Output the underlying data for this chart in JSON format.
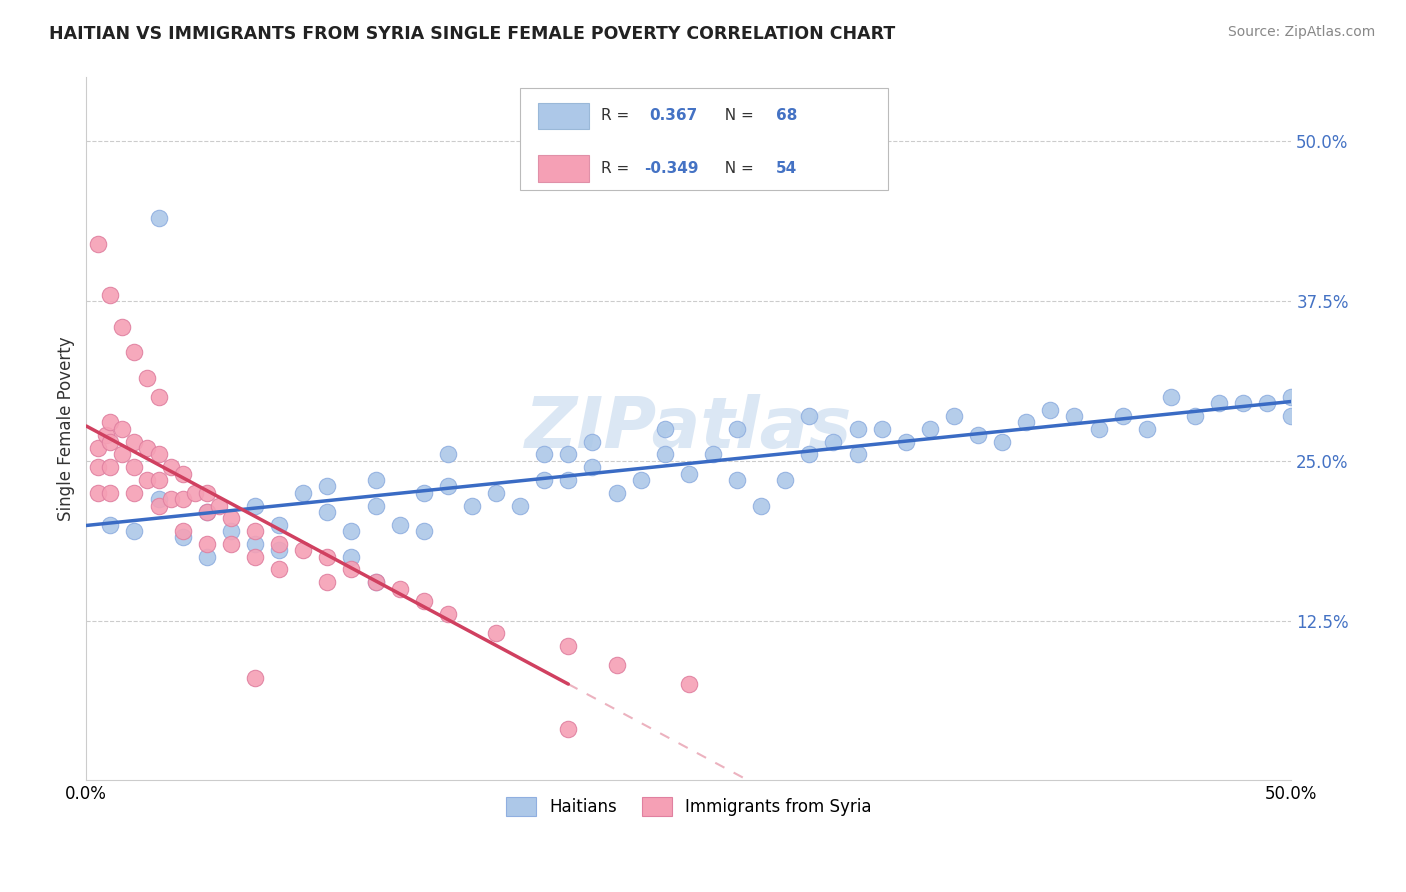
{
  "title": "HAITIAN VS IMMIGRANTS FROM SYRIA SINGLE FEMALE POVERTY CORRELATION CHART",
  "source": "Source: ZipAtlas.com",
  "ylabel": "Single Female Poverty",
  "right_yticks": [
    "50.0%",
    "37.5%",
    "25.0%",
    "12.5%"
  ],
  "right_ytick_vals": [
    0.5,
    0.375,
    0.25,
    0.125
  ],
  "xmin": 0.0,
  "xmax": 0.5,
  "ymin": 0.0,
  "ymax": 0.55,
  "color_blue": "#adc8e8",
  "color_pink": "#f5a0b5",
  "line_blue": "#3a6bc4",
  "line_pink": "#d04060",
  "watermark": "ZIPatlas"
}
